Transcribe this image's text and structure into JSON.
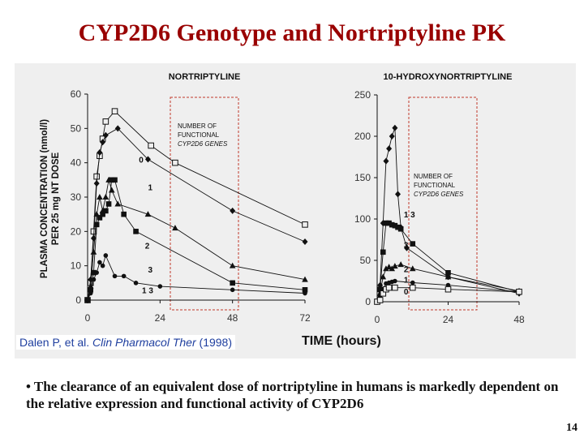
{
  "slide": {
    "title": "CYP2D6 Genotype and Nortriptyline PK",
    "citation_prefix": "Dalen P, et al. ",
    "citation_journal": "Clin Pharmacol Ther",
    "citation_year": " (1998)",
    "bullet": "• The clearance of an equivalent dose of nortriptyline in humans is markedly dependent on the relative expression and functional activity of CYP2D6",
    "page_number": "14"
  },
  "colors": {
    "title": "#990000",
    "citation": "#1f3f9f",
    "dashed_box": "#c0392b",
    "series": "#111111"
  },
  "chart_data": [
    {
      "type": "line",
      "title": "NORTRIPTYLINE",
      "ylabel": "PLASMA CONCENTRATION (nmol/l) PER 25 mg NT DOSE",
      "xlabel": "TIME (hours)",
      "xlim": [
        0,
        72
      ],
      "ylim": [
        0,
        60
      ],
      "xticks": [
        0,
        24,
        48,
        72
      ],
      "yticks": [
        0,
        10,
        20,
        30,
        40,
        50,
        60
      ],
      "legend_title": [
        "NUMBER OF",
        "FUNCTIONAL",
        "CYP2D6  GENES"
      ],
      "series": [
        {
          "name": "0",
          "marker": "square-open",
          "label_at": [
            17,
            40
          ],
          "x": [
            0,
            1,
            2,
            3,
            4,
            5,
            6,
            9,
            21,
            29,
            72
          ],
          "y": [
            0,
            5,
            20,
            36,
            42,
            47,
            52,
            55,
            45,
            40,
            22
          ]
        },
        {
          "name": "1",
          "marker": "diamond",
          "label_at": [
            20,
            32
          ],
          "x": [
            0,
            1,
            2,
            3,
            4,
            5,
            6,
            10,
            20,
            48,
            72
          ],
          "y": [
            0,
            6,
            18,
            34,
            43,
            46,
            48,
            50,
            41,
            26,
            17
          ]
        },
        {
          "name": "2",
          "marker": "triangle",
          "label_at": [
            19,
            15
          ],
          "x": [
            0,
            1,
            2,
            3,
            4,
            5,
            6,
            7,
            8,
            10,
            20,
            29,
            48,
            72
          ],
          "y": [
            0,
            4,
            14,
            25,
            30,
            26,
            30,
            35,
            32,
            28,
            25,
            21,
            10,
            6
          ]
        },
        {
          "name": "3",
          "marker": "square",
          "label_at": [
            20,
            8
          ],
          "x": [
            0,
            1,
            2,
            3,
            4,
            5,
            6,
            7,
            8,
            9,
            12,
            16,
            48,
            72
          ],
          "y": [
            0,
            3,
            8,
            22,
            24,
            25,
            26,
            28,
            35,
            35,
            25,
            20,
            5,
            3
          ]
        },
        {
          "name": "1 3",
          "marker": "circle",
          "label_at": [
            18,
            2
          ],
          "x": [
            0,
            1,
            2,
            3,
            4,
            5,
            6,
            9,
            12,
            16,
            24,
            48,
            72
          ],
          "y": [
            0,
            2,
            6,
            8,
            11,
            10,
            13,
            7,
            7,
            5,
            4,
            3,
            2
          ]
        }
      ]
    },
    {
      "type": "line",
      "title": "10-HYDROXYNORTRIPTYLINE",
      "ylabel": "",
      "xlabel": "TIME (hours)",
      "xlim": [
        0,
        48
      ],
      "ylim": [
        0,
        250
      ],
      "xticks": [
        0,
        24,
        48
      ],
      "yticks": [
        0,
        50,
        100,
        150,
        200,
        250
      ],
      "legend_title": [
        "NUMBER OF",
        "FUNCTIONAL",
        "CYP2D6  GENES"
      ],
      "series": [
        {
          "name": "1 3",
          "marker": "diamond",
          "label_at": [
            9,
            102
          ],
          "x": [
            0,
            1,
            2,
            3,
            4,
            5,
            6,
            7,
            8,
            10,
            24,
            48
          ],
          "y": [
            0,
            20,
            95,
            170,
            185,
            200,
            210,
            130,
            90,
            65,
            30,
            10
          ]
        },
        {
          "name": "3",
          "marker": "square",
          "label_at": [
            9,
            65
          ],
          "x": [
            0,
            1,
            2,
            3,
            4,
            5,
            6,
            7,
            8,
            12,
            24,
            48
          ],
          "y": [
            0,
            15,
            60,
            95,
            95,
            93,
            92,
            90,
            88,
            70,
            35,
            12
          ]
        },
        {
          "name": "2",
          "marker": "triangle",
          "label_at": [
            9,
            36
          ],
          "x": [
            0,
            1,
            2,
            3,
            4,
            5,
            6,
            8,
            12,
            24,
            48
          ],
          "y": [
            0,
            10,
            30,
            40,
            42,
            40,
            43,
            45,
            40,
            30,
            13
          ]
        },
        {
          "name": "1",
          "marker": "circle",
          "label_at": [
            9,
            23
          ],
          "x": [
            0,
            1,
            2,
            3,
            4,
            5,
            6,
            12,
            24,
            48
          ],
          "y": [
            0,
            5,
            15,
            22,
            23,
            24,
            25,
            23,
            20,
            12
          ]
        },
        {
          "name": "0",
          "marker": "square-open",
          "label_at": [
            9,
            9
          ],
          "x": [
            0,
            1,
            2,
            3,
            4,
            6,
            12,
            24,
            48
          ],
          "y": [
            0,
            2,
            10,
            15,
            17,
            17,
            17,
            15,
            12
          ]
        }
      ]
    }
  ]
}
